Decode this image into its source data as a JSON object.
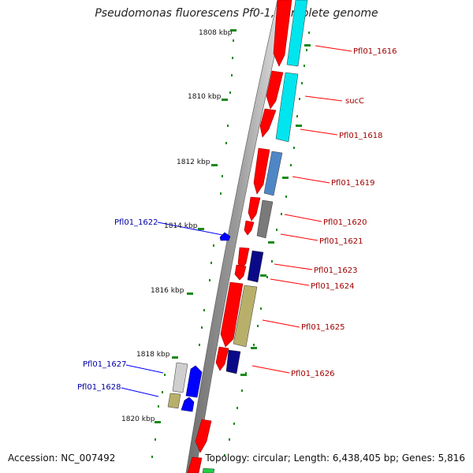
{
  "title": "Pseudomonas fluorescens Pf0-1, complete genome",
  "footer": {
    "accession": "Accession: NC_007492",
    "summary": "Topology: circular; Length: 6,438,405 bp; Genes: 5,816"
  },
  "kbp_ticks": [
    "1808 kbp",
    "1810 kbp",
    "1812 kbp",
    "1814 kbp",
    "1816 kbp",
    "1818 kbp",
    "1820 kbp"
  ],
  "genes_right": [
    "Pfl01_1616",
    "sucC",
    "Pfl01_1618",
    "Pfl01_1619",
    "Pfl01_1620",
    "Pfl01_1621",
    "Pfl01_1623",
    "Pfl01_1624",
    "Pfl01_1625",
    "Pfl01_1626"
  ],
  "genes_left": [
    "Pfl01_1622",
    "Pfl01_1627",
    "Pfl01_1628"
  ],
  "colors": {
    "cds": "#ff0000",
    "cyan_feature": "#00e5ee",
    "steelblue_feature": "#4f86c6",
    "grey_feature": "#7a7a7a",
    "navy_feature": "#0a0a88",
    "khaki_feature": "#b8b06a",
    "blue_reverse": "#0000ff",
    "silver_feature": "#cfcfcf",
    "green_feature": "#22cc44",
    "right_label": "#a00000",
    "left_label": "#0000a0",
    "tick": "#1a8a1a"
  }
}
